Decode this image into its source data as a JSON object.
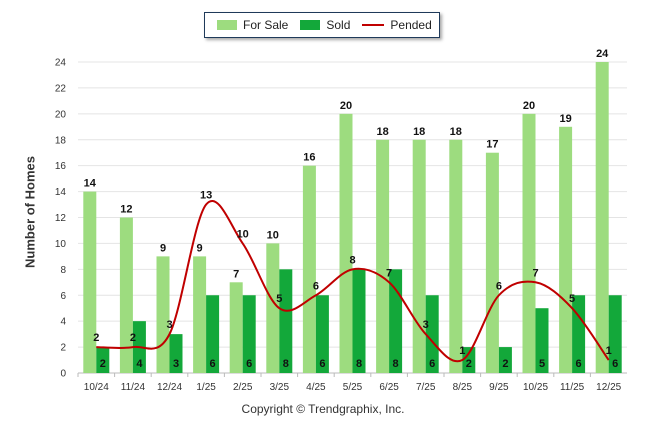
{
  "chart_data": {
    "type": "bar",
    "title": "",
    "xlabel": "",
    "ylabel": "Number of Homes",
    "ylim": [
      0,
      24
    ],
    "yticks": [
      0,
      2,
      4,
      6,
      8,
      10,
      12,
      14,
      16,
      18,
      20,
      22,
      24
    ],
    "grid": true,
    "legend_position": "top-center",
    "categories": [
      "10/24",
      "11/24",
      "12/24",
      "1/25",
      "2/25",
      "3/25",
      "4/25",
      "5/25",
      "6/25",
      "7/25",
      "8/25",
      "9/25",
      "10/25",
      "11/25",
      "12/25"
    ],
    "series": [
      {
        "name": "For Sale",
        "kind": "bar",
        "color": "#9ddc7f",
        "values": [
          14,
          12,
          9,
          9,
          7,
          10,
          16,
          20,
          18,
          18,
          18,
          17,
          20,
          19,
          24
        ]
      },
      {
        "name": "Sold",
        "kind": "bar",
        "color": "#13a83a",
        "values": [
          2,
          4,
          3,
          6,
          6,
          8,
          6,
          8,
          8,
          6,
          2,
          2,
          5,
          6,
          6
        ]
      },
      {
        "name": "Pended",
        "kind": "line",
        "color": "#c00000",
        "values": [
          2,
          2,
          3,
          13,
          10,
          5,
          6,
          8,
          7,
          3,
          1,
          6,
          7,
          5,
          1
        ]
      }
    ]
  },
  "copyright": "Copyright © Trendgraphix, Inc."
}
